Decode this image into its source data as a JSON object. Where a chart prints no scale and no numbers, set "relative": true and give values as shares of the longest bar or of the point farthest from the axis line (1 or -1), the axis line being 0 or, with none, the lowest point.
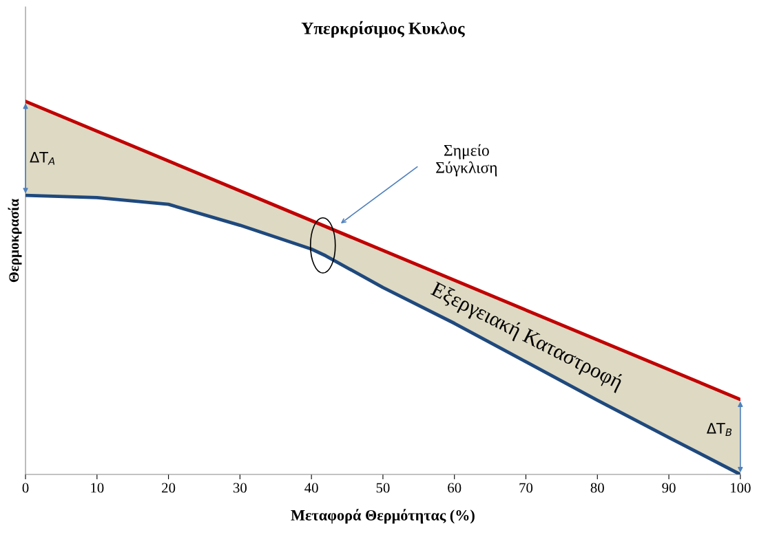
{
  "chart_data": {
    "type": "line",
    "title": "Υπερκρίσιμος Κυκλος",
    "xlabel": "Μεταφορά Θερμότητας (%)",
    "ylabel": "Θερμοκρασία",
    "relative": true,
    "xlim": [
      0,
      100
    ],
    "xticks": [
      0,
      10,
      20,
      30,
      40,
      50,
      60,
      70,
      80,
      90,
      100
    ],
    "tick_labels": "x",
    "grid": false,
    "marker": "none",
    "line_style": "solid",
    "series": [
      {
        "color": "#c00000",
        "x": [
          0,
          100
        ],
        "values": [
          1,
          0.201
        ]
      },
      {
        "color": "#1f497d",
        "x": [
          0,
          10,
          20,
          30,
          40,
          42,
          50,
          60,
          70,
          80,
          90,
          100
        ],
        "values": [
          0.748,
          0.742,
          0.724,
          0.668,
          0.604,
          0.586,
          0.501,
          0.405,
          0.302,
          0.199,
          0.099,
          0
        ],
        "lower": [
          0.748,
          0.742,
          0.724,
          0.668,
          0.604,
          0.586,
          0.501,
          0.405,
          0.302,
          0.199,
          0.099,
          0
        ],
        "upper": [
          1,
          0.92,
          0.84,
          0.76,
          0.68,
          0.664,
          0.6,
          0.52,
          0.441,
          0.361,
          0.281,
          0.201
        ]
      }
    ],
    "annotations": [
      "ΔT$_{A}$",
      "ΔT$_{B}$",
      "Σημείο\nΣύγκλιση",
      "Εξεργειακή Καταστροφή"
    ]
  }
}
